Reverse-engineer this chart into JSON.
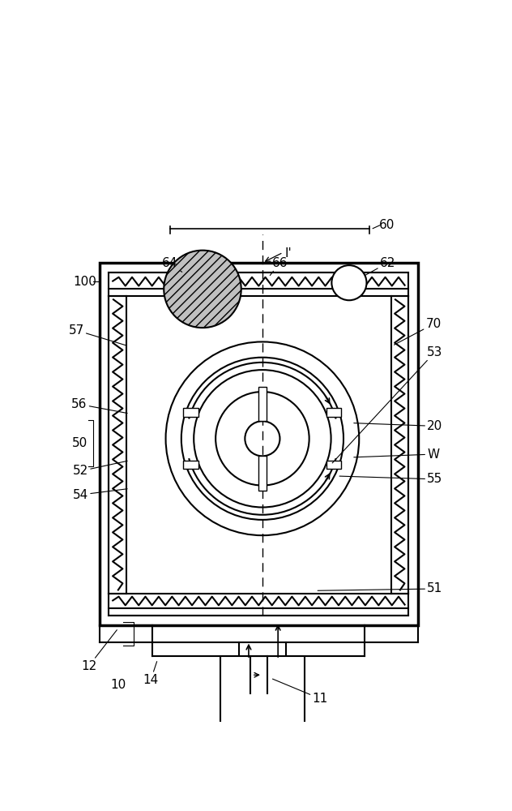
{
  "bg_color": "#ffffff",
  "line_color": "#000000",
  "fig_width": 6.32,
  "fig_height": 10.0
}
